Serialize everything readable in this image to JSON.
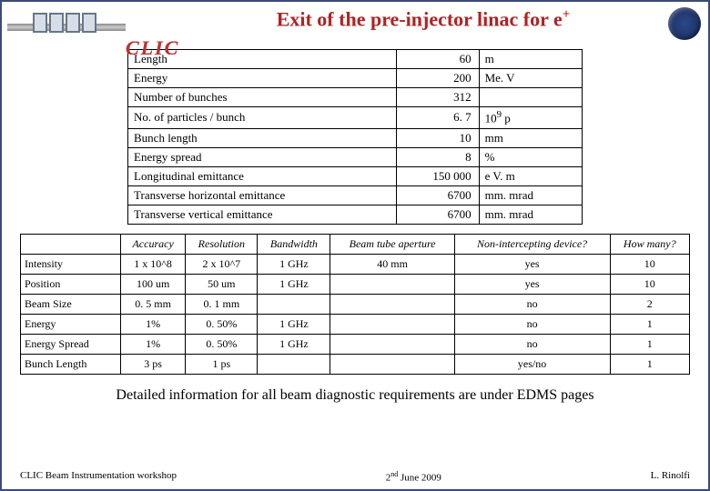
{
  "title_html": "Exit of the pre-injector linac for e<sup>+</sup>",
  "logo_text": "CLIC",
  "params": {
    "rows": [
      {
        "label": "Length",
        "value": "60",
        "unit": "m"
      },
      {
        "label": "Energy",
        "value": "200",
        "unit": "Me. V"
      },
      {
        "label": "Number of bunches",
        "value": "312",
        "unit": ""
      },
      {
        "label": "No. of particles / bunch",
        "value": "6. 7",
        "unit_html": "10<sup>9</sup> p"
      },
      {
        "label": "Bunch length",
        "value": "10",
        "unit": "mm"
      },
      {
        "label": "Energy spread",
        "value": "8",
        "unit": "%"
      },
      {
        "label": "Longitudinal emittance",
        "value": "150 000",
        "unit": "e V. m"
      },
      {
        "label": "Transverse horizontal emittance",
        "value": "6700",
        "unit": "mm. mrad"
      },
      {
        "label": "Transverse vertical emittance",
        "value": "6700",
        "unit": "mm. mrad"
      }
    ]
  },
  "diag": {
    "headers": [
      "",
      "Accuracy",
      "Resolution",
      "Bandwidth",
      "Beam tube aperture",
      "Non-intercepting device?",
      "How many?"
    ],
    "rows": [
      [
        "Intensity",
        "1 x 10^8",
        "2 x 10^7",
        "1 GHz",
        "40 mm",
        "yes",
        "10"
      ],
      [
        "Position",
        "100 um",
        "50 um",
        "1 GHz",
        "",
        "yes",
        "10"
      ],
      [
        "Beam Size",
        "0. 5 mm",
        "0. 1 mm",
        "",
        "",
        "no",
        "2"
      ],
      [
        "Energy",
        "1%",
        "0. 50%",
        "1 GHz",
        "",
        "no",
        "1"
      ],
      [
        "Energy Spread",
        "1%",
        "0. 50%",
        "1 GHz",
        "",
        "no",
        "1"
      ],
      [
        "Bunch Length",
        "3 ps",
        "1 ps",
        "",
        "",
        "yes/no",
        "1"
      ]
    ]
  },
  "note": "Detailed information for all beam diagnostic requirements are under EDMS pages",
  "footer": {
    "left": "CLIC Beam Instrumentation workshop",
    "mid_html": "2<sup>nd</sup> June 2009",
    "right": "L. Rinolfi"
  },
  "colors": {
    "title": "#b22222",
    "border": "#3a4a7a"
  }
}
